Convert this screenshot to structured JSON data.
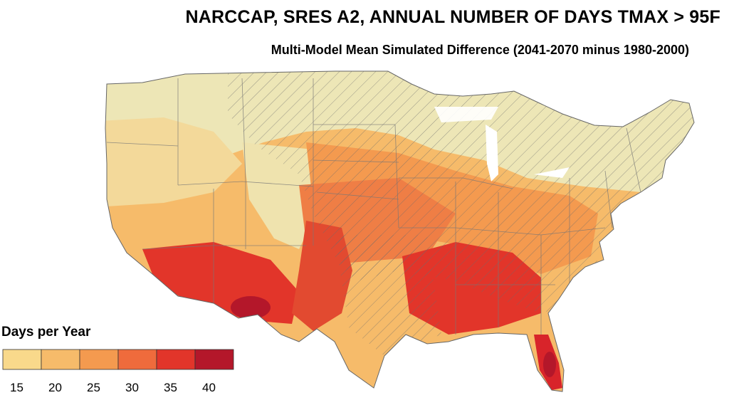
{
  "title": "NARCCAP, SRES A2, ANNUAL NUMBER OF DAYS TMAX > 95F",
  "subtitle": "Multi-Model Mean Simulated Difference (2041-2070 minus 1980-2000)",
  "legend": {
    "title": "Days per Year",
    "ticks": [
      "15",
      "20",
      "25",
      "30",
      "35",
      "40"
    ],
    "colors": [
      "#f9d98b",
      "#f6bb6a",
      "#f49a4f",
      "#ef6b3c",
      "#e2352a",
      "#b4172a"
    ]
  },
  "map": {
    "land_base_color": "#f6bb6a",
    "low_color": "#ede6b6",
    "hatch_color": "#6b6b6b",
    "state_line_color": "#777777"
  }
}
